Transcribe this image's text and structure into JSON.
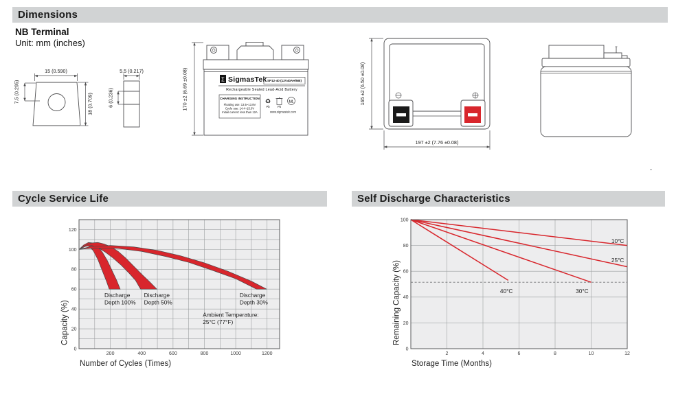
{
  "sections": {
    "dimensions": {
      "title": "Dimensions",
      "subtitle": "NB Terminal",
      "unit_note": "Unit: mm (inches)"
    },
    "cycle_life": {
      "title": "Cycle Service Life"
    },
    "self_discharge": {
      "title": "Self Discharge Characteristics"
    }
  },
  "drawings": {
    "terminal_front": {
      "dim_width": "15 (0.590)",
      "dim_left": "7.5 (0.295)",
      "dim_right": "18 (0.709)"
    },
    "terminal_side": {
      "dim_width": "5.5 (0.217)",
      "dim_left": "6 (0.236)"
    },
    "battery_front": {
      "dim_height": "170 ±2 (6.69 ±0.08)",
      "label": {
        "logo_glyph": "Σ",
        "brand": "SigmasTek",
        "model": "SP12-40 (12V40AH/NB)",
        "type_line": "Rechargeable Sealed Lead-Acid Battery",
        "charging_title": "CHARGING INSTRUCTION",
        "charging_lines": [
          "Floating use: 13.5~13.8V",
          "Cycle use: 14.4~15.0V",
          "Initial current: less than 12A"
        ],
        "recycle_glyph": "♻",
        "pb_label_1": "Pb",
        "pb_label_2": "Pb",
        "ul_label": "UL",
        "website": "www.sigmastek.com"
      }
    },
    "battery_top": {
      "dim_height": "165 ±2 (6.50 ±0.08)",
      "dim_width": "197 ±2 (7.76 ±0.08)"
    }
  },
  "chart_data": [
    {
      "type": "area",
      "title": "Cycle Service Life",
      "xlabel": "Number of Cycles (Times)",
      "ylabel": "Capacity (%)",
      "xlim": [
        0,
        1280
      ],
      "ylim": [
        0,
        130
      ],
      "xticks": [
        200,
        400,
        600,
        800,
        1000,
        1200
      ],
      "yticks": [
        0,
        20,
        40,
        60,
        80,
        100,
        120
      ],
      "grid_step_x": 100,
      "grid_step_y": 10,
      "grid": true,
      "legend_position": "none",
      "bands": [
        {
          "name": "Discharge Depth 100%",
          "upper": [
            [
              0,
              100
            ],
            [
              30,
              104.5
            ],
            [
              60,
              107
            ],
            [
              90,
              106.5
            ],
            [
              120,
              103
            ],
            [
              150,
              97
            ],
            [
              180,
              89
            ],
            [
              210,
              79
            ],
            [
              240,
              69
            ],
            [
              263,
              60
            ]
          ],
          "lower": [
            [
              0,
              100
            ],
            [
              30,
              103
            ],
            [
              60,
              103.5
            ],
            [
              90,
              99
            ],
            [
              120,
              90
            ],
            [
              150,
              78
            ],
            [
              175,
              68
            ],
            [
              193,
              60
            ]
          ]
        },
        {
          "name": "Discharge Depth 50%",
          "upper": [
            [
              0,
              100
            ],
            [
              40,
              104
            ],
            [
              80,
              106.5
            ],
            [
              120,
              107
            ],
            [
              160,
              105.5
            ],
            [
              200,
              103
            ],
            [
              250,
              98
            ],
            [
              300,
              91
            ],
            [
              350,
              83
            ],
            [
              400,
              75
            ],
            [
              450,
              67.5
            ],
            [
              497,
              60
            ]
          ],
          "lower": [
            [
              0,
              100
            ],
            [
              40,
              103
            ],
            [
              80,
              104
            ],
            [
              120,
              102
            ],
            [
              170,
              97
            ],
            [
              220,
              91
            ],
            [
              270,
              84
            ],
            [
              320,
              76
            ],
            [
              360,
              69
            ],
            [
              393,
              60
            ]
          ]
        },
        {
          "name": "Discharge Depth 30%",
          "upper": [
            [
              0,
              100
            ],
            [
              80,
              103
            ],
            [
              200,
              104
            ],
            [
              350,
              102.5
            ],
            [
              500,
              99
            ],
            [
              650,
              93.5
            ],
            [
              800,
              86.5
            ],
            [
              950,
              78
            ],
            [
              1100,
              68
            ],
            [
              1197,
              60
            ]
          ],
          "lower": [
            [
              0,
              100
            ],
            [
              100,
              101.5
            ],
            [
              250,
              101
            ],
            [
              400,
              98
            ],
            [
              550,
              93
            ],
            [
              700,
              87
            ],
            [
              850,
              79
            ],
            [
              1000,
              70.5
            ],
            [
              1133,
              60
            ]
          ]
        }
      ],
      "annotations": [
        {
          "lines": [
            "Discharge",
            "Depth 100%"
          ],
          "x": 162,
          "y": 52
        },
        {
          "lines": [
            "Discharge",
            "Depth 50%"
          ],
          "x": 415,
          "y": 52
        },
        {
          "lines": [
            "Discharge",
            "Depth 30%"
          ],
          "x": 1025,
          "y": 52
        },
        {
          "lines": [
            "Ambient Temperature:",
            "25°C (77°F)"
          ],
          "x": 790,
          "y": 32
        }
      ]
    },
    {
      "type": "line",
      "title": "Self Discharge Characteristics",
      "xlabel": "Storage Time (Months)",
      "ylabel": "Remaining Capacity (%)",
      "xlim": [
        0,
        12
      ],
      "ylim": [
        0,
        100
      ],
      "xticks": [
        2,
        4,
        6,
        8,
        10,
        12
      ],
      "yticks": [
        0,
        20,
        40,
        60,
        80,
        100
      ],
      "grid_step_x": 2,
      "grid_step_y": 20,
      "grid": true,
      "legend_position": "inline-labels",
      "series": [
        {
          "name": "10°C",
          "points": [
            [
              0,
              100
            ],
            [
              12,
              80
            ]
          ],
          "label": {
            "x": 11.12,
            "y": 82,
            "anchor": "start"
          }
        },
        {
          "name": "25°C",
          "points": [
            [
              0,
              100
            ],
            [
              12,
              63.5
            ]
          ],
          "label": {
            "x": 11.12,
            "y": 67,
            "anchor": "start"
          }
        },
        {
          "name": "30°C",
          "points": [
            [
              0,
              100
            ],
            [
              10,
              51.5
            ]
          ],
          "label": {
            "x": 9.5,
            "y": 43,
            "anchor": "middle"
          }
        },
        {
          "name": "40°C",
          "points": [
            [
              0,
              100
            ],
            [
              5.4,
              53
            ]
          ],
          "label": {
            "x": 5.3,
            "y": 43,
            "anchor": "middle"
          }
        }
      ],
      "dashed_line": {
        "y": 51.5,
        "from": 0,
        "to": 12
      }
    }
  ],
  "colors": {
    "header_bar_bg": "#d1d3d4",
    "red": "#d8262c",
    "plot_bg": "#ededee",
    "grid": "#9c9ea0",
    "axis": "#58595b",
    "band_stroke": "#4a4a4c",
    "dashed": "#707173",
    "draw_stroke": "#4d4d4f"
  }
}
